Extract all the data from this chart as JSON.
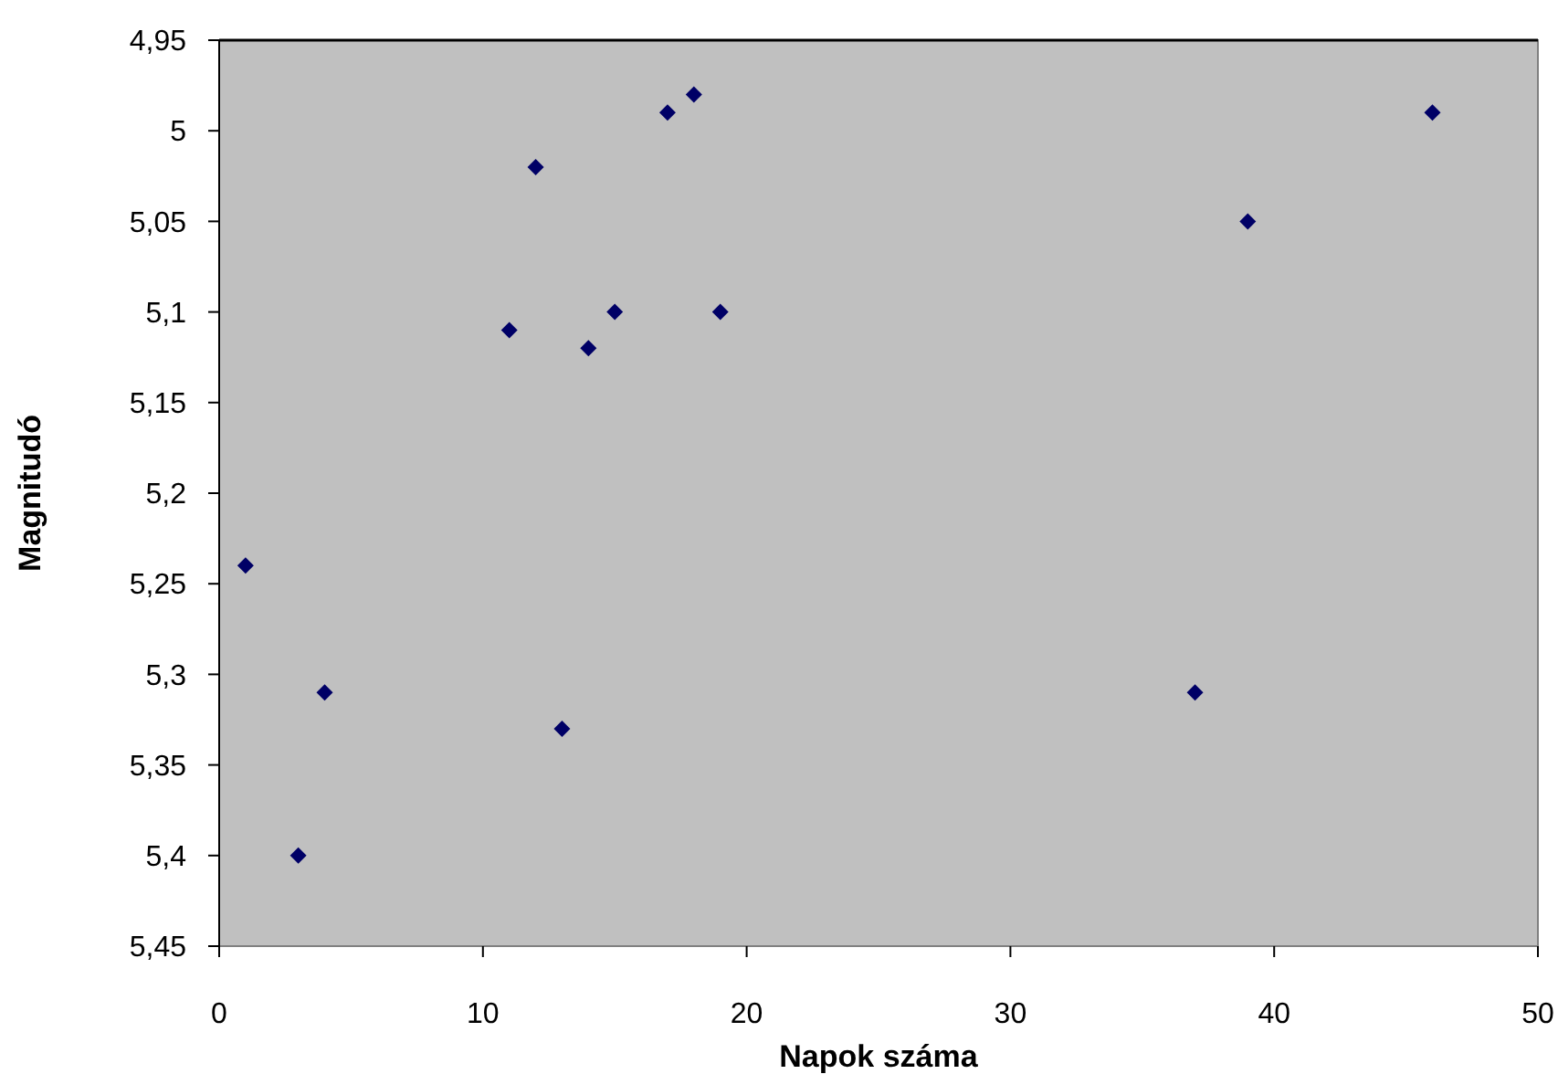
{
  "chart_data": {
    "type": "scatter",
    "xlabel": "Napok száma",
    "ylabel": "Magnitudó",
    "x": [
      1,
      3,
      4,
      11,
      12,
      13,
      14,
      15,
      17,
      18,
      19,
      37,
      39,
      46
    ],
    "series": [
      {
        "color": "#000066",
        "values": [
          5.24,
          5.4,
          5.31,
          5.11,
          5.02,
          5.33,
          5.12,
          5.1,
          4.99,
          4.98,
          5.1,
          5.31,
          5.05,
          4.99
        ]
      }
    ],
    "xlim": [
      0,
      50
    ],
    "xticks": [
      0,
      10,
      20,
      30,
      40,
      50
    ],
    "ylim": [
      5.45,
      4.95
    ],
    "yticks": [
      {
        "value": 4.95,
        "label": "4,95"
      },
      {
        "value": 5,
        "label": "5"
      },
      {
        "value": 5.05,
        "label": "5,05"
      },
      {
        "value": 5.1,
        "label": "5,1"
      },
      {
        "value": 5.15,
        "label": "5,15"
      },
      {
        "value": 5.2,
        "label": "5,2"
      },
      {
        "value": 5.25,
        "label": "5,25"
      },
      {
        "value": 5.3,
        "label": "5,3"
      },
      {
        "value": 5.35,
        "label": "5,35"
      },
      {
        "value": 5.4,
        "label": "5,4"
      },
      {
        "value": 5.45,
        "label": "5,45"
      }
    ],
    "grid": false,
    "marker": "diamond"
  }
}
